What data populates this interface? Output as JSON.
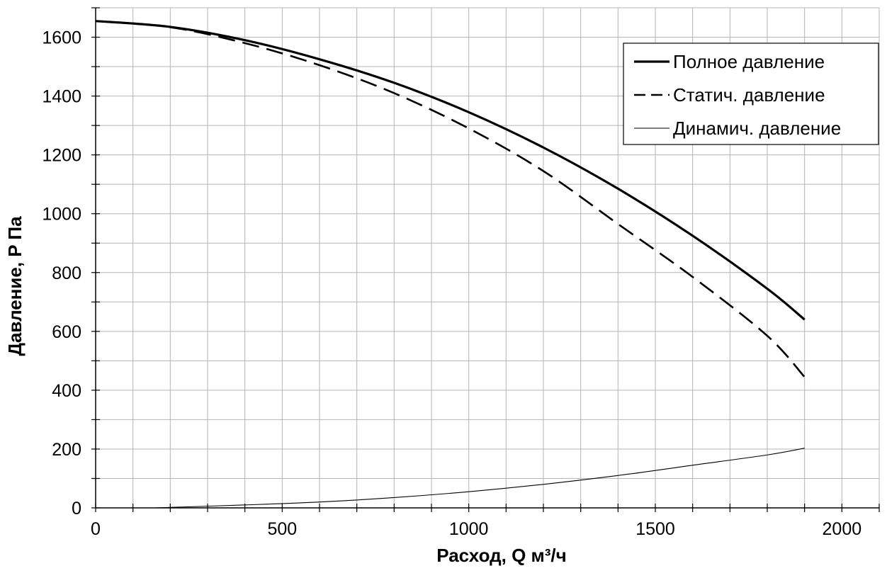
{
  "chart_data": {
    "type": "line",
    "xlabel": "Расход, Q м³/ч",
    "ylabel": "Давление, P Па",
    "xlim": [
      0,
      2100
    ],
    "ylim": [
      0,
      1700
    ],
    "x_ticks": [
      0,
      500,
      1000,
      1500,
      2000
    ],
    "y_ticks": [
      0,
      200,
      400,
      600,
      800,
      1000,
      1200,
      1400,
      1600
    ],
    "x_minor_step": 100,
    "y_minor_step": 100,
    "grid": true,
    "legend_position": "top-right",
    "series": [
      {
        "name": "Полное давление",
        "style": "solid-thick",
        "x": [
          0,
          200,
          400,
          600,
          800,
          1000,
          1200,
          1400,
          1600,
          1800,
          1900
        ],
        "y": [
          1655,
          1635,
          1590,
          1525,
          1445,
          1345,
          1225,
          1085,
          925,
          745,
          640
        ]
      },
      {
        "name": "Статич. давление",
        "style": "dashed",
        "x": [
          0,
          200,
          400,
          600,
          800,
          1000,
          1200,
          1400,
          1600,
          1800,
          1900
        ],
        "y": [
          1655,
          1634,
          1580,
          1505,
          1410,
          1290,
          1145,
          965,
          785,
          585,
          445
        ]
      },
      {
        "name": "Динамич. давление",
        "style": "solid-thin",
        "x": [
          160,
          400,
          600,
          800,
          1000,
          1200,
          1400,
          1600,
          1800,
          1900
        ],
        "y": [
          0,
          10,
          20,
          35,
          55,
          80,
          110,
          145,
          180,
          203
        ]
      }
    ]
  }
}
